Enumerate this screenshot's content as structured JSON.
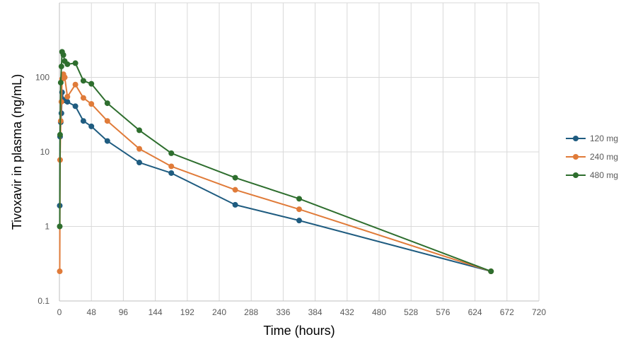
{
  "chart_data": {
    "type": "line",
    "title": "",
    "xlabel": "Time (hours)",
    "ylabel": "Tivoxavir in plasma (ng/mL)",
    "xlim": [
      0,
      720
    ],
    "xticks": [
      0,
      48,
      96,
      144,
      192,
      240,
      288,
      336,
      384,
      432,
      480,
      528,
      576,
      624,
      672,
      720
    ],
    "ylim": [
      0.1,
      1000
    ],
    "yscale": "log",
    "yticks": [
      0.1,
      1,
      10,
      100
    ],
    "ytick_labels": [
      "0.1",
      "1",
      "10",
      "100"
    ],
    "grid": true,
    "legend": "right",
    "series": [
      {
        "name": "120 mg",
        "color": "#1f5c80",
        "x": [
          0.5,
          1,
          2,
          3,
          4,
          6,
          8,
          12,
          24,
          36,
          48,
          72,
          120,
          168,
          264,
          360,
          648
        ],
        "y": [
          1.9,
          16,
          25,
          33,
          63,
          50,
          49,
          47,
          41,
          26,
          22,
          14,
          7.2,
          5.2,
          1.95,
          1.2,
          0.25
        ]
      },
      {
        "name": "240 mg",
        "color": "#e07b39",
        "x": [
          0.5,
          1,
          2,
          3,
          4,
          6,
          8,
          12,
          24,
          36,
          48,
          72,
          120,
          168,
          264,
          360,
          648
        ],
        "y": [
          0.25,
          7.8,
          26,
          47,
          95,
          110,
          100,
          55,
          80,
          53,
          44,
          26,
          11,
          6.4,
          3.1,
          1.7,
          0.25
        ]
      },
      {
        "name": "480 mg",
        "color": "#2e6e2e",
        "x": [
          0.5,
          1,
          2,
          3,
          4,
          6,
          8,
          12,
          24,
          36,
          48,
          72,
          120,
          168,
          264,
          360,
          648
        ],
        "y": [
          1.0,
          17,
          85,
          140,
          220,
          200,
          165,
          150,
          155,
          90,
          82,
          45,
          19.5,
          9.6,
          4.5,
          2.35,
          0.25
        ]
      }
    ]
  }
}
